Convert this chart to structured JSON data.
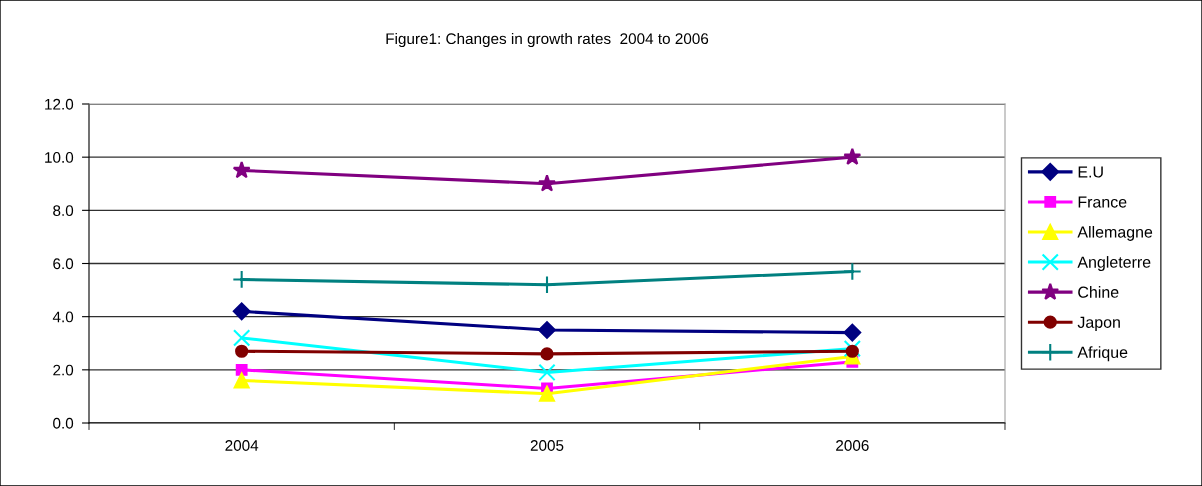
{
  "chart_data": {
    "type": "line",
    "title": "Figure1: Changes in growth rates  2004 to 2006",
    "categories": [
      "2004",
      "2005",
      "2006"
    ],
    "series": [
      {
        "name": "E.U",
        "color": "#000080",
        "marker": "diamond",
        "values": [
          4.2,
          3.5,
          3.4
        ]
      },
      {
        "name": "France",
        "color": "#ff00ff",
        "marker": "square",
        "values": [
          2.0,
          1.3,
          2.3
        ]
      },
      {
        "name": "Allemagne",
        "color": "#ffff00",
        "marker": "triangle",
        "values": [
          1.6,
          1.1,
          2.5
        ]
      },
      {
        "name": "Angleterre",
        "color": "#00ffff",
        "marker": "cross",
        "values": [
          3.2,
          1.9,
          2.8
        ]
      },
      {
        "name": "Chine",
        "color": "#800080",
        "marker": "star",
        "values": [
          9.5,
          9.0,
          10.0
        ]
      },
      {
        "name": "Japon",
        "color": "#800000",
        "marker": "circle",
        "values": [
          2.7,
          2.6,
          2.7
        ]
      },
      {
        "name": "Afrique",
        "color": "#008080",
        "marker": "plus",
        "values": [
          5.4,
          5.2,
          5.7
        ]
      }
    ],
    "ylim": [
      0,
      12
    ],
    "yticks": [
      {
        "value": 0,
        "label": "0.0"
      },
      {
        "value": 2,
        "label": "2.0"
      },
      {
        "value": 4,
        "label": "4.0"
      },
      {
        "value": 6,
        "label": "6.0"
      },
      {
        "value": 8,
        "label": "8.0"
      },
      {
        "value": 10,
        "label": "10.0"
      },
      {
        "value": 12,
        "label": "12.0"
      }
    ],
    "grid": "y",
    "legend": "right",
    "line_style": "solid"
  }
}
